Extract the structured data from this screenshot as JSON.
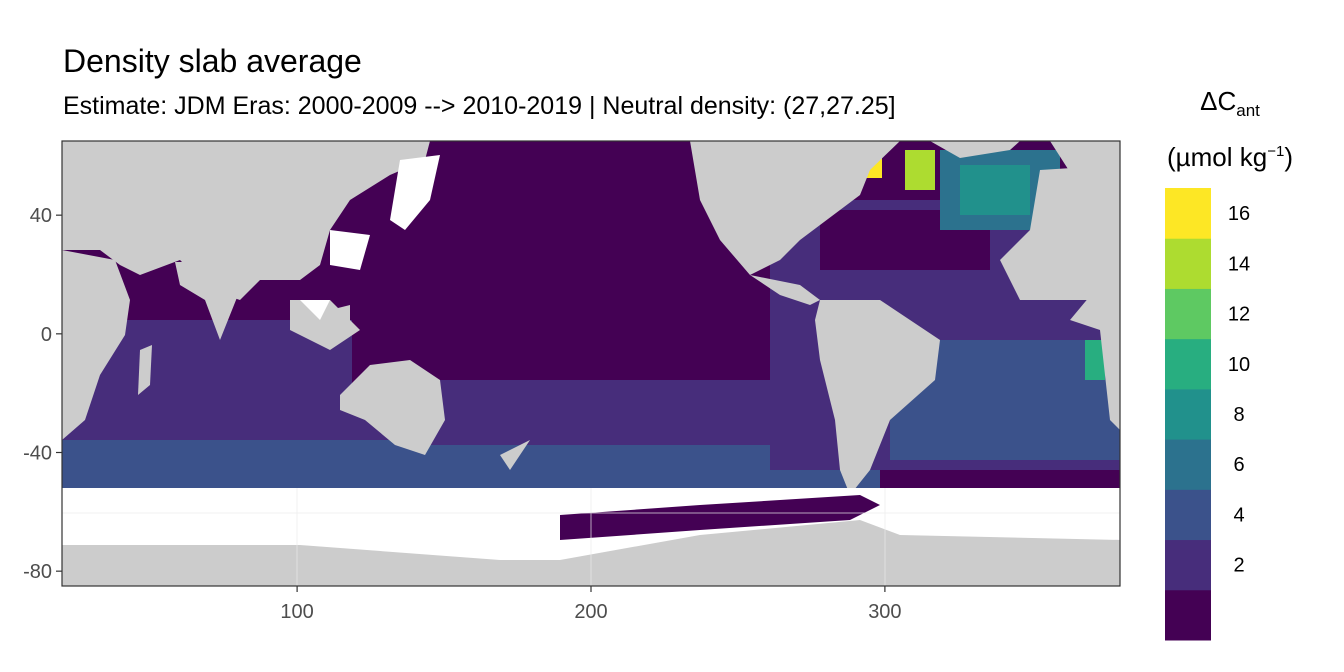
{
  "title": "Density slab average",
  "subtitle": "Estimate: JDM Eras: 2000-2009 --> 2010-2019 | Neutral density: (27,27.25]",
  "legend": {
    "symbol": "ΔC",
    "subscript": "ant",
    "unit_open": "(µmol kg",
    "unit_sup": "−1",
    "unit_close": ")",
    "bins": [
      {
        "label": "",
        "color": "#440154"
      },
      {
        "label": "2",
        "color": "#472d7b"
      },
      {
        "label": "4",
        "color": "#3b528b"
      },
      {
        "label": "6",
        "color": "#2c728e"
      },
      {
        "label": "8",
        "color": "#21918c"
      },
      {
        "label": "10",
        "color": "#28ae80"
      },
      {
        "label": "12",
        "color": "#5ec962"
      },
      {
        "label": "14",
        "color": "#addc30"
      },
      {
        "label": "16",
        "color": "#fde725"
      }
    ]
  },
  "axes": {
    "x_range": [
      20,
      380
    ],
    "y_range": [
      -85,
      65
    ],
    "x_ticks": [
      100,
      200,
      300
    ],
    "y_ticks": [
      40,
      0,
      -40,
      -80
    ],
    "grid": true
  },
  "colors": {
    "land": "#cccccc",
    "no_data": "#ffffff",
    "panel_border": "#333333",
    "grid": "#ebebeb"
  }
}
